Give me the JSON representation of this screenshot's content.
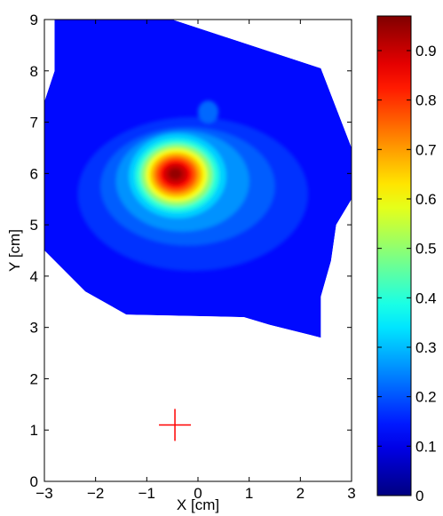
{
  "chart_data": {
    "type": "heatmap",
    "title": "",
    "xlabel": "X [cm]",
    "ylabel": "Y [cm]",
    "xlim": [
      -3,
      3
    ],
    "ylim": [
      0,
      9
    ],
    "x_ticks": [
      "−3",
      "−2",
      "−1",
      "0",
      "1",
      "2",
      "3"
    ],
    "y_ticks": [
      "0",
      "1",
      "2",
      "3",
      "4",
      "5",
      "6",
      "7",
      "8",
      "9"
    ],
    "grid": false,
    "colormap": "jet",
    "colorbar": {
      "range": [
        0,
        0.97
      ],
      "ticks": [
        "0",
        "0.1",
        "0.2",
        "0.3",
        "0.4",
        "0.5",
        "0.6",
        "0.7",
        "0.8",
        "0.9"
      ]
    },
    "region_outline": [
      [
        -2.8,
        9
      ],
      [
        -0.5,
        9
      ],
      [
        2.4,
        8.05
      ],
      [
        3,
        6.5
      ],
      [
        3,
        5.5
      ],
      [
        2.7,
        5
      ],
      [
        2.6,
        4.3
      ],
      [
        2.4,
        3.6
      ],
      [
        2.4,
        2.8
      ],
      [
        2.2,
        2.85
      ],
      [
        1.4,
        3.05
      ],
      [
        0.9,
        3.2
      ],
      [
        -1.4,
        3.25
      ],
      [
        -2.2,
        3.7
      ],
      [
        -3,
        4.5
      ],
      [
        -3,
        7.4
      ],
      [
        -2.8,
        8
      ]
    ],
    "background_value": 0.13,
    "peak": {
      "x": -0.4,
      "y": 5.95,
      "value": 0.97
    },
    "secondary_blob": {
      "x": 0.2,
      "y": 7.2,
      "value": 0.22
    },
    "marker": {
      "symbol": "+",
      "x": -0.45,
      "y": 1.1,
      "color": "#ff0000"
    }
  }
}
